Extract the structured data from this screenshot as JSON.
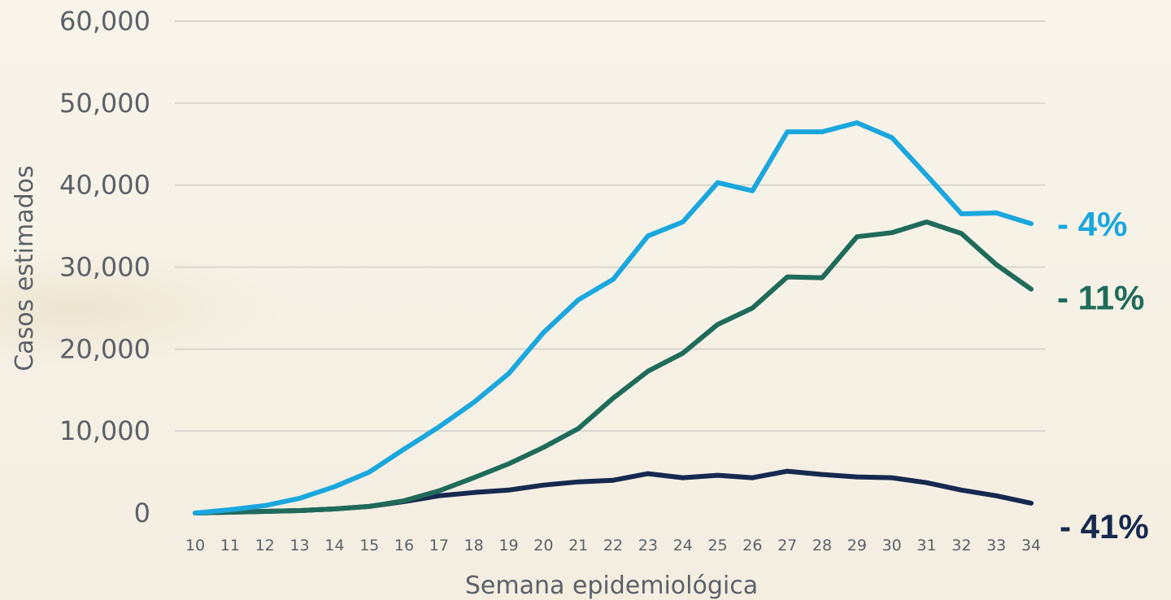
{
  "chart_data": {
    "type": "line",
    "xlabel": "Semana epidemiológica",
    "ylabel": "Casos estimados",
    "ylim": [
      0,
      60000
    ],
    "y_ticks": [
      0,
      10000,
      20000,
      30000,
      40000,
      50000,
      60000
    ],
    "y_tick_labels": [
      "0",
      "10,000",
      "20,000",
      "30,000",
      "40,000",
      "50,000",
      "60,000"
    ],
    "x": [
      10,
      11,
      12,
      13,
      14,
      15,
      16,
      17,
      18,
      19,
      20,
      21,
      22,
      23,
      24,
      25,
      26,
      27,
      28,
      29,
      30,
      31,
      32,
      33,
      34
    ],
    "x_tick_labels": [
      "10",
      "11",
      "12",
      "13",
      "14",
      "15",
      "16",
      "17",
      "18",
      "19",
      "20",
      "21",
      "22",
      "23",
      "24",
      "25",
      "26",
      "27",
      "28",
      "29",
      "30",
      "31",
      "32",
      "33",
      "34"
    ],
    "grid": "horizontal",
    "series": [
      {
        "color": "#1aa7de",
        "end_label": "- 4%",
        "values": [
          0,
          400,
          900,
          1800,
          3200,
          5000,
          7800,
          10500,
          13500,
          17000,
          22000,
          26000,
          28500,
          33800,
          35500,
          40300,
          39300,
          46500,
          46500,
          47600,
          45800,
          41200,
          36500,
          36600,
          35300
        ]
      },
      {
        "color": "#1f6b5a",
        "end_label": "- 11%",
        "values": [
          0,
          100,
          200,
          300,
          500,
          800,
          1500,
          2700,
          4300,
          6000,
          8000,
          10300,
          14000,
          17300,
          19500,
          23000,
          25000,
          28800,
          28700,
          33700,
          34200,
          35500,
          34100,
          30300,
          27300
        ]
      },
      {
        "color": "#16294f",
        "end_label": "- 41%",
        "values": [
          0,
          100,
          200,
          300,
          500,
          800,
          1400,
          2100,
          2500,
          2800,
          3400,
          3800,
          4000,
          4800,
          4300,
          4600,
          4300,
          5100,
          4700,
          4400,
          4300,
          3700,
          2800,
          2100,
          1200
        ]
      }
    ]
  }
}
